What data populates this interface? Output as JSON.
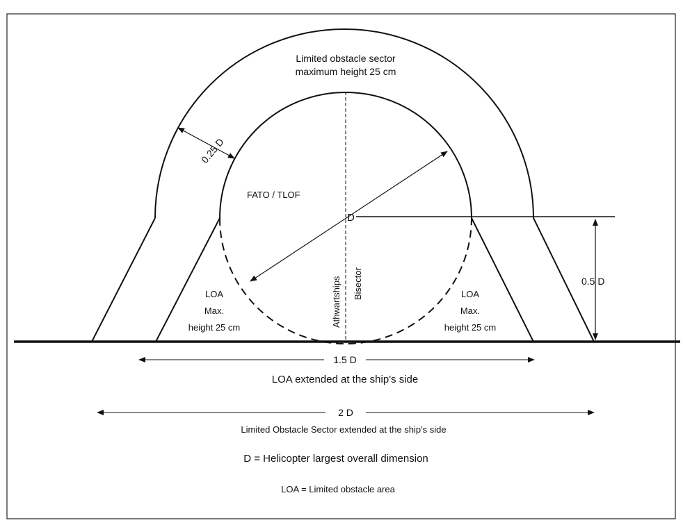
{
  "labels": {
    "los_line1": "Limited obstacle sector",
    "los_line2": "maximum height 25 cm",
    "ring_width": "0.25 D",
    "fato_tlof": "FATO / TLOF",
    "center": "D",
    "athwartships": "Athwartships",
    "bisector": "Bisector",
    "loa_left_1": "LOA",
    "loa_left_2": "Max.",
    "loa_left_3": "height 25 cm",
    "loa_right_1": "LOA",
    "loa_right_2": "Max.",
    "loa_right_3": "height 25 cm",
    "half_d": "0.5 D",
    "dim_1_5d": "1.5 D",
    "dim_1_5d_caption": "LOA extended at the ship's side",
    "dim_2d": "2 D",
    "dim_2d_caption": "Limited Obstacle Sector extended at the ship's side",
    "legend_d": "D = Helicopter largest overall dimension",
    "legend_loa": "LOA = Limited obstacle area"
  }
}
